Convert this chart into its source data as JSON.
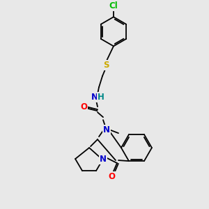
{
  "bg_color": "#e8e8e8",
  "bond_color": "#000000",
  "atom_colors": {
    "N": "#0000cc",
    "O": "#ff0000",
    "S": "#ccaa00",
    "Cl": "#00bb00",
    "H": "#008888",
    "C": "#000000"
  },
  "font_size_atom": 8.5,
  "fig_w": 3.0,
  "fig_h": 3.0,
  "dpi": 100
}
